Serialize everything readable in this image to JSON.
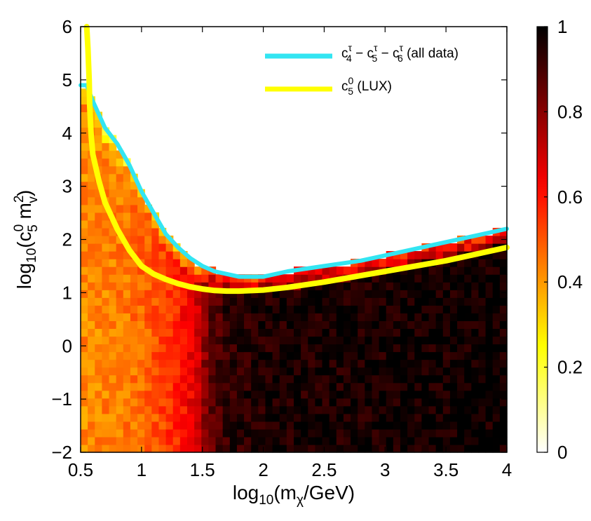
{
  "chart_data": {
    "type": "heatmap",
    "title": "",
    "xlabel": {
      "prefix": "log",
      "sub1": "10",
      "mid": "(m",
      "sub2": "χ",
      "suffix": "/GeV)"
    },
    "ylabel": {
      "prefix": "log",
      "sub1": "10",
      "mid": "(c",
      "sup_c": "0",
      "sub_c": "5",
      "m": " m",
      "sup_m": "2",
      "sub_m": "v",
      "suffix": ")"
    },
    "xlim": [
      0.5,
      4
    ],
    "ylim": [
      -2,
      6
    ],
    "x_ticks": [
      0.5,
      1,
      1.5,
      2,
      2.5,
      3,
      3.5,
      4
    ],
    "x_tick_labels": [
      "0.5",
      "1",
      "1.5",
      "2",
      "2.5",
      "3",
      "3.5",
      "4"
    ],
    "y_ticks": [
      -2,
      -1,
      0,
      1,
      2,
      3,
      4,
      5,
      6
    ],
    "y_tick_labels": [
      "−2",
      "−1",
      "0",
      "1",
      "2",
      "3",
      "4",
      "5",
      "6"
    ],
    "colorbar": {
      "range": [
        0,
        1
      ],
      "ticks": [
        0,
        0.2,
        0.4,
        0.6,
        0.8,
        1
      ],
      "tick_labels": [
        "0",
        "0.2",
        "0.4",
        "0.6",
        "0.8",
        "1"
      ],
      "colormap": "hot_reversed"
    },
    "heatmap": {
      "x_bins": 60,
      "y_bins": 55,
      "boundary": {
        "x": [
          0.5,
          0.55,
          0.6,
          0.7,
          0.8,
          0.9,
          1.0,
          1.1,
          1.2,
          1.3,
          1.4,
          1.5,
          1.6,
          1.7,
          1.8,
          2.0,
          2.2,
          2.5,
          2.8,
          3.0,
          3.5,
          3.8,
          4.0
        ],
        "y": [
          4.9,
          4.9,
          4.6,
          4.1,
          3.8,
          3.4,
          2.9,
          2.5,
          2.1,
          1.85,
          1.65,
          1.5,
          1.4,
          1.35,
          1.3,
          1.3,
          1.4,
          1.5,
          1.6,
          1.7,
          1.95,
          2.1,
          2.2
        ]
      },
      "value_profile": {
        "x": [
          0.5,
          0.9,
          1.1,
          1.3,
          1.45,
          1.55,
          1.7,
          2.0,
          4.0
        ],
        "v": [
          0.42,
          0.45,
          0.5,
          0.58,
          0.68,
          0.85,
          0.93,
          0.96,
          0.98
        ]
      }
    },
    "series": [
      {
        "name": "c4τ − c5τ − c6τ (all data)",
        "color": "#33e5f2",
        "x": [
          0.5,
          0.55,
          0.6,
          0.7,
          0.8,
          0.9,
          1.0,
          1.1,
          1.2,
          1.3,
          1.4,
          1.5,
          1.6,
          1.7,
          1.8,
          2.0,
          2.2,
          2.5,
          2.8,
          3.0,
          3.5,
          3.8,
          4.0
        ],
        "y": [
          4.9,
          4.9,
          4.6,
          4.1,
          3.8,
          3.4,
          2.9,
          2.5,
          2.1,
          1.85,
          1.65,
          1.5,
          1.4,
          1.35,
          1.3,
          1.3,
          1.4,
          1.5,
          1.6,
          1.7,
          1.95,
          2.1,
          2.2
        ]
      },
      {
        "name": "c50 (LUX)",
        "color": "#ffff00",
        "x": [
          0.55,
          0.56,
          0.57,
          0.575,
          0.585,
          0.6,
          0.65,
          0.7,
          0.8,
          0.9,
          1.0,
          1.1,
          1.2,
          1.3,
          1.4,
          1.5,
          1.6,
          1.7,
          1.8,
          2.0,
          2.2,
          2.5,
          3.0,
          3.5,
          4.0
        ],
        "y": [
          6.0,
          5.6,
          5.0,
          4.5,
          4.0,
          3.6,
          3.1,
          2.7,
          2.2,
          1.8,
          1.5,
          1.35,
          1.25,
          1.17,
          1.11,
          1.07,
          1.04,
          1.03,
          1.03,
          1.05,
          1.1,
          1.2,
          1.4,
          1.6,
          1.85
        ]
      }
    ],
    "legend": {
      "position": "top-right",
      "entries": [
        {
          "base": "c",
          "sup": "τ",
          "sub": "4",
          "rest": " − c",
          "sup2": "τ",
          "sub2": "5",
          "rest2": " − c",
          "sup3": "τ",
          "sub3": "6",
          "tail": " (all data)",
          "color": "#33e5f2"
        },
        {
          "base": "c",
          "sup": "0",
          "sub": "5",
          "tail": " (LUX)",
          "color": "#ffff00"
        }
      ]
    }
  }
}
